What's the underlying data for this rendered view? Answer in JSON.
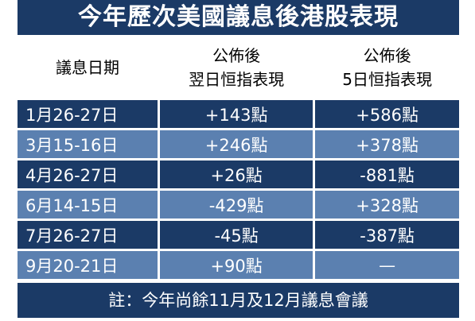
{
  "title": "今年歷次美國議息後港股表現",
  "table": {
    "header": [
      [
        "議息日期"
      ],
      [
        "公佈後",
        "翌日恒指表現"
      ],
      [
        "公佈後",
        "5日恒指表現"
      ]
    ],
    "rows": [
      [
        "1月26-27日",
        "+143點",
        "+586點"
      ],
      [
        "3月15-16日",
        "+246點",
        "+378點"
      ],
      [
        "4月26-27日",
        "+26點",
        "-881點"
      ],
      [
        "6月14-15日",
        "-429點",
        "+328點"
      ],
      [
        "7月26-27日",
        "-45點",
        "-387點"
      ],
      [
        "9月20-21日",
        "+90點",
        "—"
      ]
    ]
  },
  "footnote": "註：今年尚餘11月及12月議息會議"
}
